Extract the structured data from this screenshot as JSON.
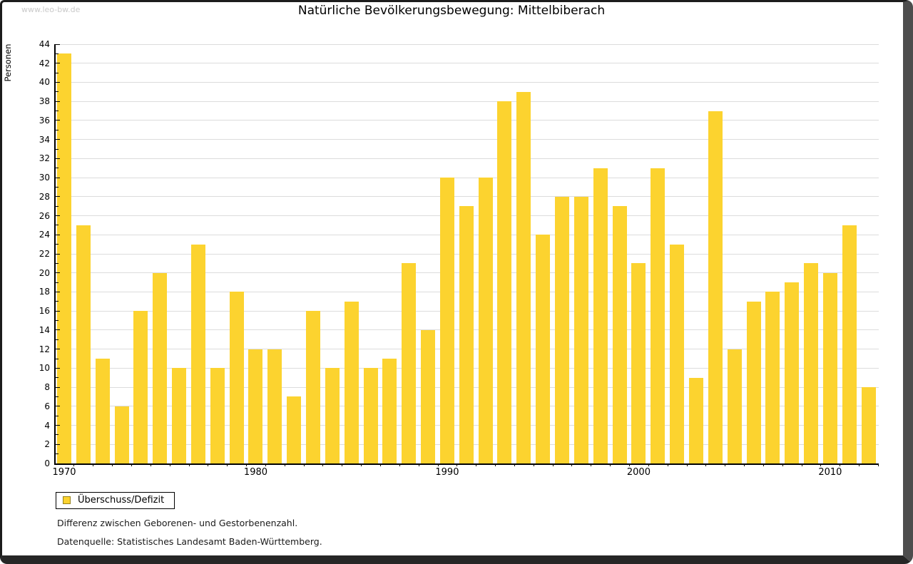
{
  "header": {
    "watermark": "www.leo-bw.de",
    "title": "Natürliche Bevölkerungsbewegung: Mittelbiberach"
  },
  "legend": {
    "label": "Überschuss/Defizit",
    "swatch_color": "#FCD32F",
    "swatch_border": "#97821B"
  },
  "footer": {
    "line1": "Differenz zwischen Geborenen- und Gestorbenenzahl.",
    "line2": "Datenquelle: Statistisches Landesamt Baden-Württemberg."
  },
  "colors": {
    "bar": "#FCD32F",
    "grid": "#DCDCDC",
    "axis": "#000000",
    "watermark": "#C9C9C9"
  },
  "chart_data": {
    "type": "bar",
    "title": "Natürliche Bevölkerungsbewegung: Mittelbiberach",
    "xlabel": "",
    "ylabel": "Personen",
    "ylim": [
      0,
      44
    ],
    "ytick_label_step": 2,
    "ytick_minor_step": 1,
    "grid": true,
    "legend_position": "bottom-left",
    "x_axis_labels": [
      1970,
      1980,
      1990,
      2000,
      2010
    ],
    "categories": [
      1970,
      1971,
      1972,
      1973,
      1974,
      1975,
      1976,
      1977,
      1978,
      1979,
      1980,
      1981,
      1982,
      1983,
      1984,
      1985,
      1986,
      1987,
      1988,
      1989,
      1990,
      1991,
      1992,
      1993,
      1994,
      1995,
      1996,
      1997,
      1998,
      1999,
      2000,
      2001,
      2002,
      2003,
      2004,
      2005,
      2006,
      2007,
      2008,
      2009,
      2010,
      2011,
      2012
    ],
    "series": [
      {
        "name": "Überschuss/Defizit",
        "values": [
          43,
          25,
          11,
          6,
          16,
          20,
          10,
          23,
          10,
          18,
          12,
          12,
          7,
          16,
          10,
          17,
          10,
          11,
          21,
          14,
          30,
          27,
          30,
          38,
          39,
          24,
          28,
          28,
          31,
          27,
          21,
          31,
          23,
          9,
          37,
          12,
          17,
          18,
          19,
          21,
          20,
          25,
          8
        ]
      }
    ]
  }
}
